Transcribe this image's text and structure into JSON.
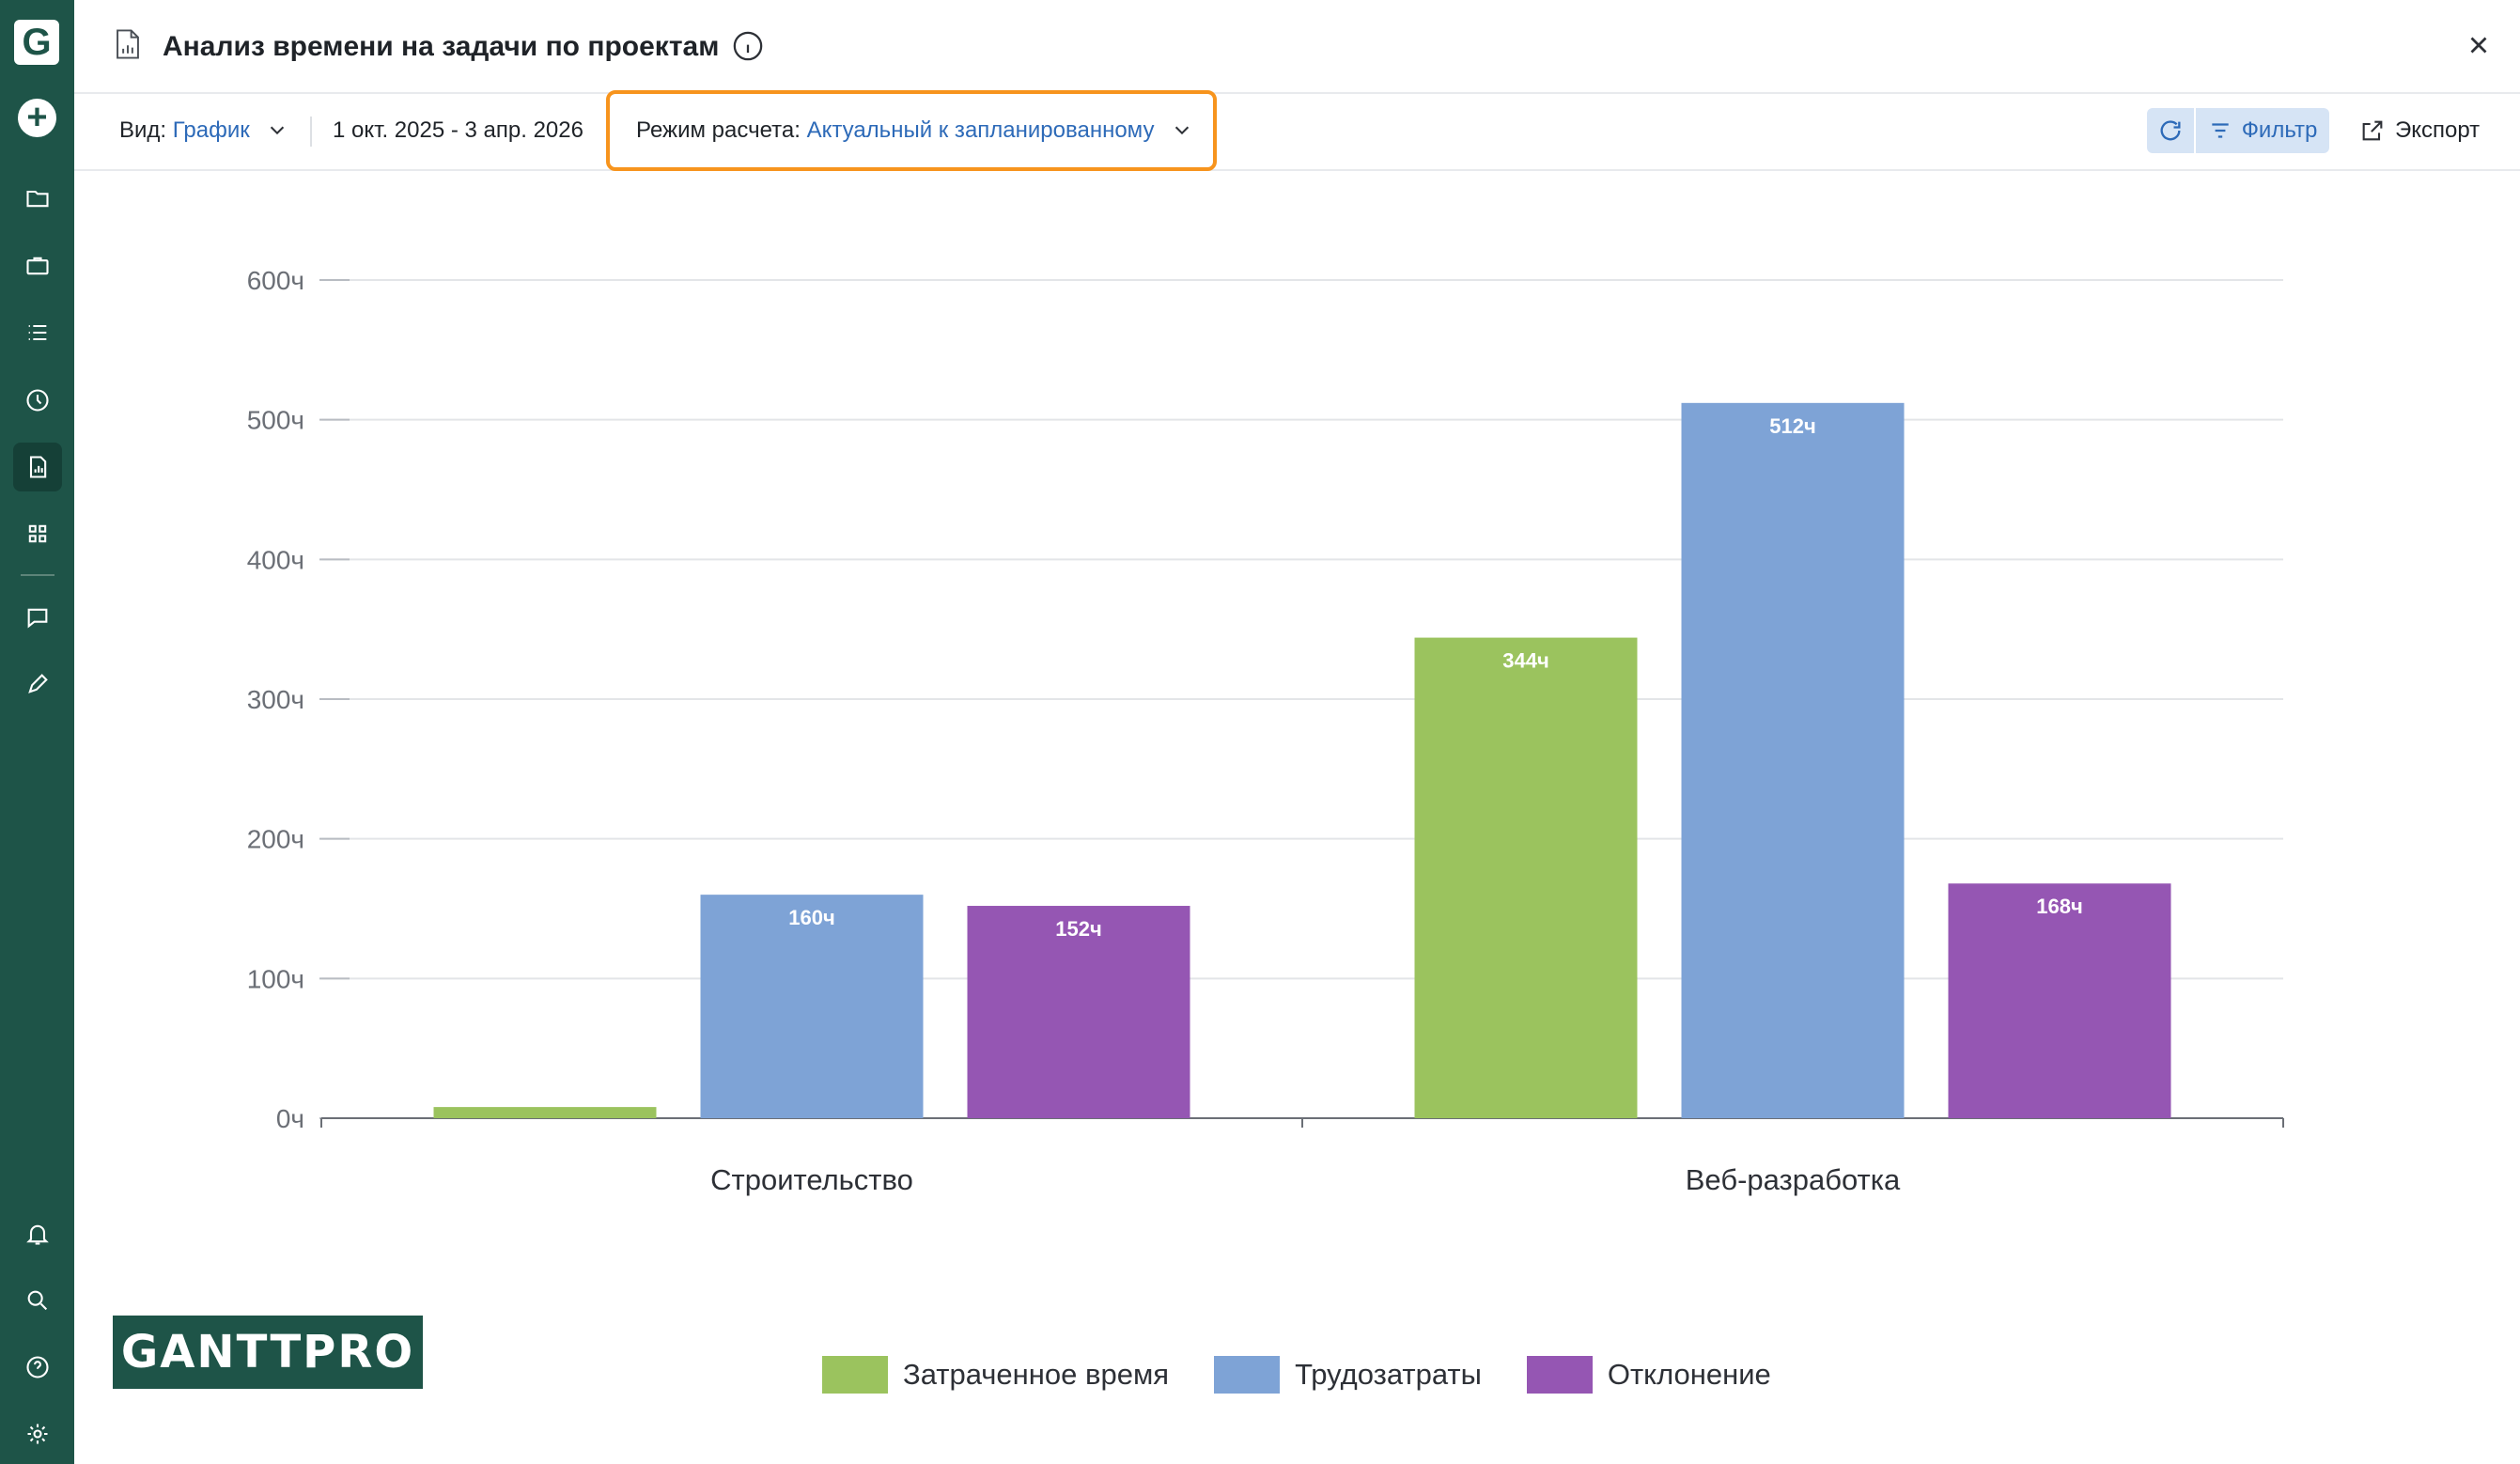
{
  "app": {
    "logo_letter": "G",
    "brand_logo": "GANTTPRO"
  },
  "sidebar": {
    "items": [
      {
        "icon": "folder-icon"
      },
      {
        "icon": "briefcase-icon"
      },
      {
        "icon": "list-icon"
      },
      {
        "icon": "clock-icon"
      },
      {
        "icon": "report-icon",
        "active": true
      },
      {
        "icon": "apps-grid-icon"
      },
      {
        "icon": "chat-icon"
      },
      {
        "icon": "pencil-icon"
      },
      {
        "icon": "bell-icon"
      },
      {
        "icon": "search-icon"
      },
      {
        "icon": "help-icon"
      },
      {
        "icon": "gear-icon"
      }
    ]
  },
  "header": {
    "title": "Анализ времени на задачи по проектам"
  },
  "toolbar": {
    "view_label": "Вид:",
    "view_value": "График",
    "date_range": "1 окт. 2025 - 3 апр. 2026",
    "mode_label": "Режим расчета:",
    "mode_value": "Актуальный к запланированному",
    "filter_label": "Фильтр",
    "export_label": "Экспорт"
  },
  "colors": {
    "spent": "#9bc35e",
    "effort": "#7ea3d6",
    "deviation": "#9556b3",
    "accent": "#2d6ab8",
    "highlight": "#f7941d"
  },
  "chart_data": {
    "type": "bar",
    "categories": [
      "Строительство",
      "Веб-разработка"
    ],
    "series": [
      {
        "name": "Затраченное время",
        "values": [
          8,
          344
        ],
        "labels": [
          "",
          "344ч"
        ]
      },
      {
        "name": "Трудозатраты",
        "values": [
          160,
          512
        ],
        "labels": [
          "160ч",
          "512ч"
        ]
      },
      {
        "name": "Отклонение",
        "values": [
          152,
          168
        ],
        "labels": [
          "152ч",
          "168ч"
        ]
      }
    ],
    "yticks": [
      "0ч",
      "100ч",
      "200ч",
      "300ч",
      "400ч",
      "500ч",
      "600ч"
    ],
    "ylim": [
      0,
      600
    ],
    "grid": true,
    "legend": "bottom"
  }
}
